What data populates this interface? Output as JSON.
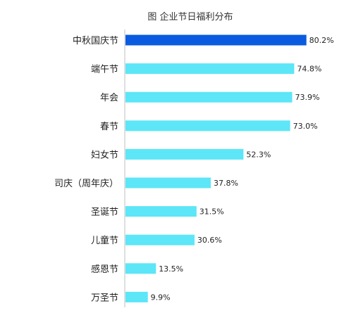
{
  "chart_data": {
    "type": "bar",
    "orientation": "horizontal",
    "title": "图  企业节日福利分布",
    "xlabel": "",
    "ylabel": "",
    "xlim": [
      0,
      100
    ],
    "grid": false,
    "legend": "none",
    "categories": [
      "中秋国庆节",
      "端午节",
      "年会",
      "春节",
      "妇女节",
      "司庆（周年庆）",
      "圣诞节",
      "儿童节",
      "感恩节",
      "万圣节"
    ],
    "values": [
      80.2,
      74.8,
      73.9,
      73.0,
      52.3,
      37.8,
      31.5,
      30.6,
      13.5,
      9.9
    ],
    "value_labels": [
      "80.2%",
      "74.8%",
      "73.9%",
      "73.0%",
      "52.3%",
      "37.8%",
      "31.5%",
      "30.6%",
      "13.5%",
      "9.9%"
    ],
    "highlight_index": 0,
    "colors": {
      "bar": "#5ce6f7",
      "highlight": "#0a5be0",
      "axis": "#bfbfbf",
      "text": "#222222"
    }
  }
}
